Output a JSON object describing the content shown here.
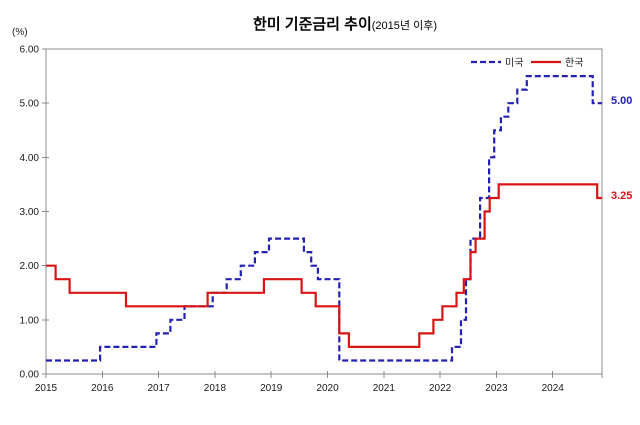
{
  "chart_data": {
    "type": "line",
    "title": "한미 기준금리 추이",
    "subtitle": "(2015년 이후)",
    "unit_label": "(%)",
    "xlim": [
      2015,
      2024.875
    ],
    "ylim": [
      0,
      6
    ],
    "grid": false,
    "legend_position": "top-right-inside",
    "x_ticks": [
      "2015",
      "2016",
      "2017",
      "2018",
      "2019",
      "2020",
      "2021",
      "2022",
      "2023",
      "2024"
    ],
    "y_ticks": [
      {
        "value": 6,
        "label": "6.00"
      },
      {
        "value": 5,
        "label": "5.00"
      },
      {
        "value": 4,
        "label": "4.00"
      },
      {
        "value": 3,
        "label": "3.00"
      },
      {
        "value": 2,
        "label": "2.00"
      },
      {
        "value": 1,
        "label": "1.00"
      },
      {
        "value": 0,
        "label": "0.00"
      }
    ],
    "series": [
      {
        "name": "미국",
        "color": "#2222b2",
        "line_style": "dashed",
        "end_label": "5.00",
        "points": [
          [
            2015.0,
            0.25
          ],
          [
            2015.96,
            0.5
          ],
          [
            2016.96,
            0.75
          ],
          [
            2017.21,
            1.0
          ],
          [
            2017.46,
            1.25
          ],
          [
            2017.96,
            1.5
          ],
          [
            2018.21,
            1.75
          ],
          [
            2018.46,
            2.0
          ],
          [
            2018.71,
            2.25
          ],
          [
            2018.96,
            2.5
          ],
          [
            2019.58,
            2.25
          ],
          [
            2019.71,
            2.0
          ],
          [
            2019.83,
            1.75
          ],
          [
            2020.21,
            0.25
          ],
          [
            2022.21,
            0.5
          ],
          [
            2022.37,
            1.0
          ],
          [
            2022.46,
            1.75
          ],
          [
            2022.54,
            2.5
          ],
          [
            2022.71,
            3.25
          ],
          [
            2022.87,
            4.0
          ],
          [
            2022.96,
            4.5
          ],
          [
            2023.08,
            4.75
          ],
          [
            2023.21,
            5.0
          ],
          [
            2023.37,
            5.25
          ],
          [
            2023.54,
            5.5
          ],
          [
            2024.71,
            5.0
          ],
          [
            2024.875,
            5.0
          ]
        ]
      },
      {
        "name": "한국",
        "color": "#d91414",
        "line_style": "solid",
        "end_label": "3.25",
        "points": [
          [
            2015.0,
            2.0
          ],
          [
            2015.17,
            1.75
          ],
          [
            2015.42,
            1.5
          ],
          [
            2016.42,
            1.25
          ],
          [
            2017.87,
            1.5
          ],
          [
            2018.87,
            1.75
          ],
          [
            2019.54,
            1.5
          ],
          [
            2019.79,
            1.25
          ],
          [
            2020.21,
            0.75
          ],
          [
            2020.38,
            0.5
          ],
          [
            2021.63,
            0.75
          ],
          [
            2021.88,
            1.0
          ],
          [
            2022.04,
            1.25
          ],
          [
            2022.29,
            1.5
          ],
          [
            2022.42,
            1.75
          ],
          [
            2022.54,
            2.25
          ],
          [
            2022.63,
            2.5
          ],
          [
            2022.79,
            3.0
          ],
          [
            2022.88,
            3.25
          ],
          [
            2023.04,
            3.5
          ],
          [
            2024.79,
            3.25
          ],
          [
            2024.875,
            3.25
          ]
        ]
      }
    ]
  }
}
